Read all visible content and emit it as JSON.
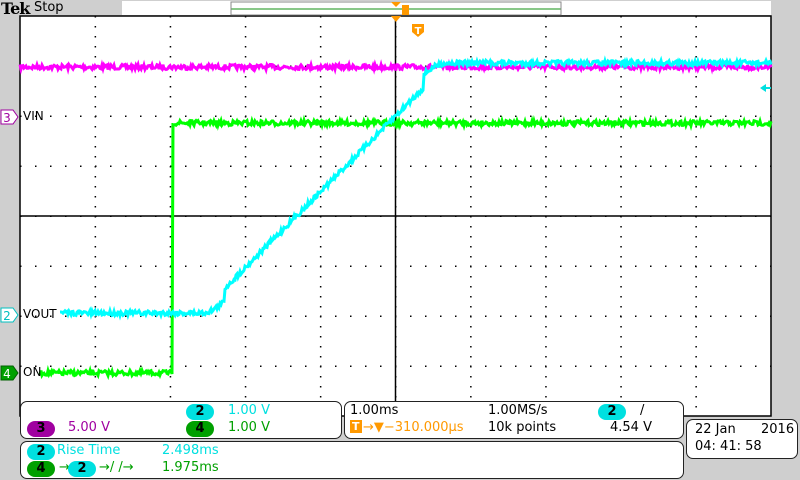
{
  "header": {
    "brand": "Tek",
    "state": "Stop"
  },
  "colors": {
    "ch2": "#00ffff",
    "ch3": "#ff00ff",
    "ch4": "#00ff00",
    "trigger": "#ff9900",
    "grid": "#000000"
  },
  "channels": [
    {
      "num": "2",
      "label": "VOUT",
      "scale": "1.00 V"
    },
    {
      "num": "3",
      "label": "VIN",
      "scale": "5.00 V"
    },
    {
      "num": "4",
      "label": "ON",
      "scale": "1.00 V"
    }
  ],
  "measurements": [
    {
      "source": "2",
      "name": "Rise Time",
      "value": "2.498ms"
    },
    {
      "source": "4",
      "target": "2",
      "name": "→/ /→",
      "value": "1.975ms"
    }
  ],
  "horizontal": {
    "time_div": "1.00ms",
    "sample_rate": "1.00MS/s",
    "trigger_icon": "T",
    "trigger_delay": "→▼−310.000µs",
    "record_length": "10k points"
  },
  "trigger": {
    "source": "2",
    "slope": "/",
    "level": "4.54 V"
  },
  "datetime": {
    "date": "22 Jan",
    "year": "2016",
    "time": "04: 41: 58"
  },
  "traces": {
    "time_unit": "ms",
    "volt_unit": "V",
    "ch3": {
      "level_v": 5.0
    },
    "ch4": {
      "low_v": 0,
      "high_v": 5.0,
      "step_time_ms": -3.27
    },
    "ch2": {
      "low_v": 0,
      "high_v": 5.0,
      "rise_start_ms": -2.9,
      "rise_end_ms": 0.4
    }
  }
}
